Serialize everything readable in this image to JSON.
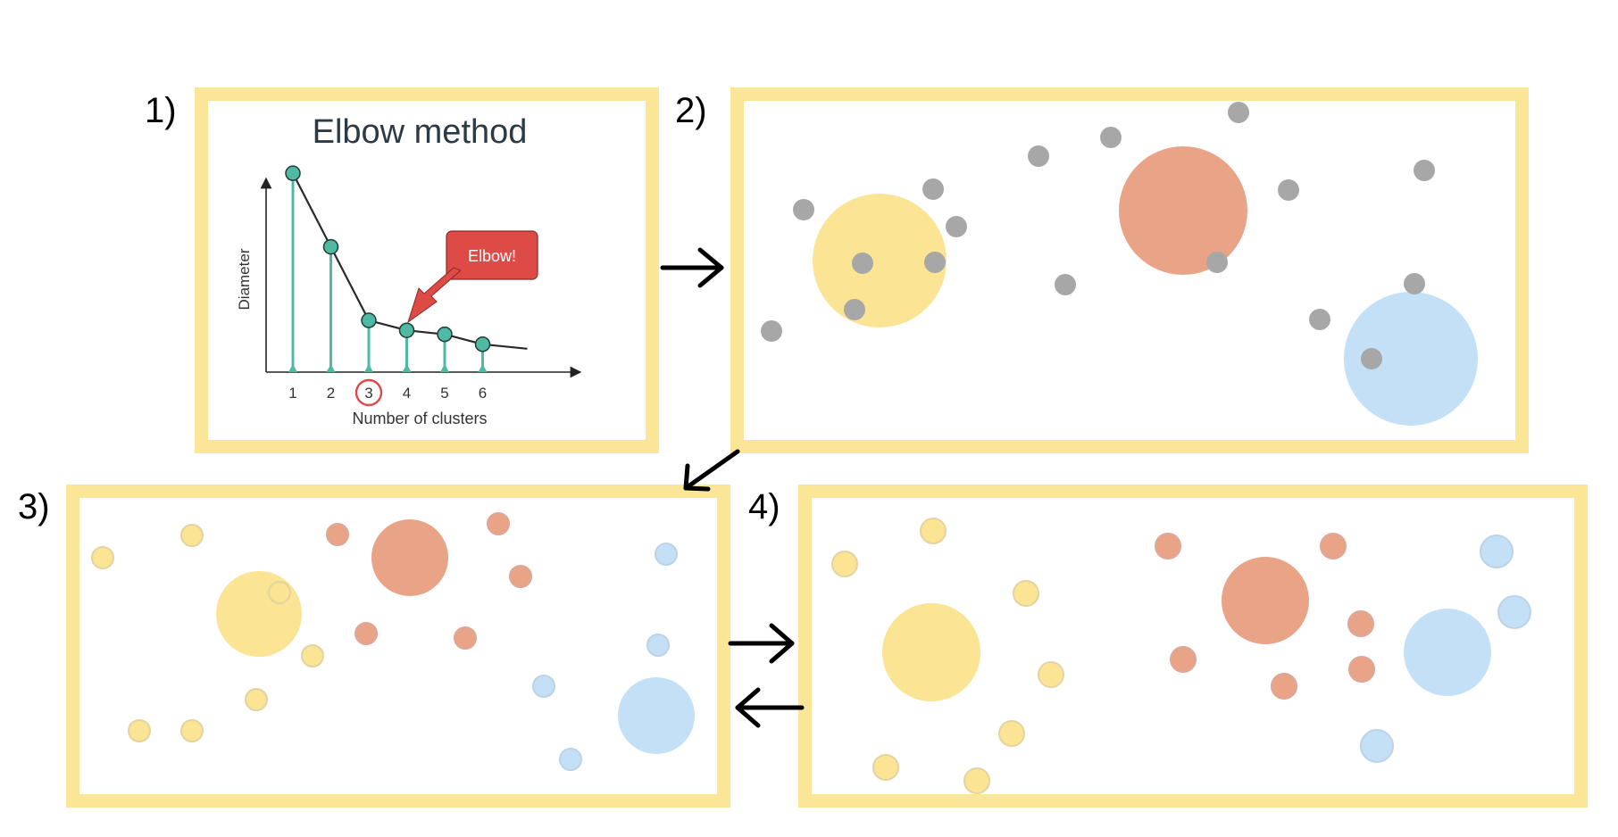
{
  "step_labels": [
    "1)",
    "2)",
    "3)",
    "4)"
  ],
  "colors": {
    "frame": "#fbe597",
    "yellow_cluster": "#fbe494",
    "red_cluster": "#e9a387",
    "blue_cluster": "#c3e0f7",
    "unassigned_point": "#a7a7a7",
    "curve_teal": "#4fb9a3",
    "elbow_callout": "#de4b47"
  },
  "elbow": {
    "title": "Elbow method",
    "ylabel": "Diameter",
    "xlabel": "Number of clusters",
    "callout": "Elbow!",
    "highlighted_k": 3
  },
  "chart_data": {
    "type": "line",
    "title": "Elbow method",
    "xlabel": "Number of clusters",
    "ylabel": "Diameter",
    "x": [
      1,
      2,
      3,
      4,
      5,
      6
    ],
    "values": [
      10,
      6.3,
      2.6,
      2.1,
      1.9,
      1.4
    ],
    "y_tick_labels": [],
    "ylim": [
      0,
      10.5
    ],
    "grid": false,
    "annotations": [
      "Elbow!"
    ]
  }
}
